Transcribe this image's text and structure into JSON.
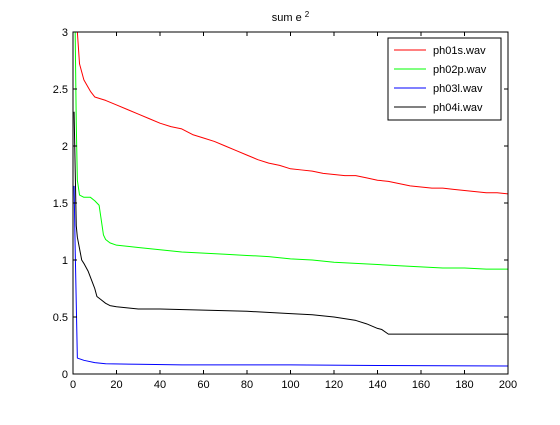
{
  "chart_data": {
    "type": "line",
    "title": "sum e",
    "title_superscript": "2",
    "xlabel": "",
    "ylabel": "",
    "xlim": [
      0,
      200
    ],
    "ylim": [
      0,
      3
    ],
    "xticks": [
      0,
      20,
      40,
      60,
      80,
      100,
      120,
      140,
      160,
      180,
      200
    ],
    "yticks": [
      0,
      0.5,
      1,
      1.5,
      2,
      2.5,
      3
    ],
    "ytick_labels": [
      "0",
      "0.5",
      "1",
      "1.5",
      "2",
      "2.5",
      "3"
    ],
    "grid": false,
    "legend_position": "top-right",
    "series": [
      {
        "name": "ph01s.wav",
        "color": "#ff0000",
        "points": [
          [
            2,
            3.0
          ],
          [
            3,
            2.72
          ],
          [
            5,
            2.58
          ],
          [
            8,
            2.48
          ],
          [
            10,
            2.43
          ],
          [
            15,
            2.4
          ],
          [
            20,
            2.36
          ],
          [
            25,
            2.32
          ],
          [
            30,
            2.28
          ],
          [
            35,
            2.24
          ],
          [
            40,
            2.2
          ],
          [
            45,
            2.17
          ],
          [
            50,
            2.15
          ],
          [
            55,
            2.1
          ],
          [
            60,
            2.07
          ],
          [
            65,
            2.04
          ],
          [
            70,
            2.0
          ],
          [
            75,
            1.96
          ],
          [
            80,
            1.92
          ],
          [
            85,
            1.88
          ],
          [
            90,
            1.85
          ],
          [
            95,
            1.83
          ],
          [
            100,
            1.8
          ],
          [
            105,
            1.79
          ],
          [
            110,
            1.78
          ],
          [
            115,
            1.76
          ],
          [
            120,
            1.75
          ],
          [
            125,
            1.74
          ],
          [
            130,
            1.74
          ],
          [
            135,
            1.72
          ],
          [
            140,
            1.7
          ],
          [
            145,
            1.69
          ],
          [
            150,
            1.67
          ],
          [
            155,
            1.65
          ],
          [
            160,
            1.64
          ],
          [
            165,
            1.63
          ],
          [
            170,
            1.63
          ],
          [
            175,
            1.62
          ],
          [
            180,
            1.61
          ],
          [
            185,
            1.6
          ],
          [
            190,
            1.59
          ],
          [
            195,
            1.59
          ],
          [
            200,
            1.58
          ]
        ]
      },
      {
        "name": "ph02p.wav",
        "color": "#00ff00",
        "points": [
          [
            1,
            3.0
          ],
          [
            1.5,
            2.2
          ],
          [
            2,
            1.7
          ],
          [
            3,
            1.57
          ],
          [
            5,
            1.55
          ],
          [
            8,
            1.55
          ],
          [
            10,
            1.52
          ],
          [
            12,
            1.48
          ],
          [
            13,
            1.35
          ],
          [
            14,
            1.22
          ],
          [
            15,
            1.18
          ],
          [
            17,
            1.15
          ],
          [
            20,
            1.13
          ],
          [
            30,
            1.11
          ],
          [
            40,
            1.09
          ],
          [
            50,
            1.07
          ],
          [
            60,
            1.06
          ],
          [
            70,
            1.05
          ],
          [
            80,
            1.04
          ],
          [
            90,
            1.03
          ],
          [
            100,
            1.01
          ],
          [
            110,
            1.0
          ],
          [
            120,
            0.98
          ],
          [
            130,
            0.97
          ],
          [
            140,
            0.96
          ],
          [
            150,
            0.95
          ],
          [
            160,
            0.94
          ],
          [
            170,
            0.93
          ],
          [
            180,
            0.93
          ],
          [
            190,
            0.92
          ],
          [
            200,
            0.92
          ]
        ]
      },
      {
        "name": "ph03l.wav",
        "color": "#0000ff",
        "points": [
          [
            0.5,
            1.65
          ],
          [
            1,
            1.1
          ],
          [
            2,
            0.14
          ],
          [
            5,
            0.12
          ],
          [
            10,
            0.1
          ],
          [
            15,
            0.09
          ],
          [
            30,
            0.085
          ],
          [
            50,
            0.08
          ],
          [
            100,
            0.08
          ],
          [
            140,
            0.075
          ],
          [
            200,
            0.07
          ]
        ]
      },
      {
        "name": "ph04i.wav",
        "color": "#000000",
        "points": [
          [
            0.5,
            2.3
          ],
          [
            1,
            1.8
          ],
          [
            1.5,
            1.3
          ],
          [
            2,
            1.2
          ],
          [
            3,
            1.1
          ],
          [
            4,
            1.0
          ],
          [
            5,
            0.97
          ],
          [
            7,
            0.9
          ],
          [
            9,
            0.8
          ],
          [
            10,
            0.75
          ],
          [
            11,
            0.68
          ],
          [
            13,
            0.65
          ],
          [
            15,
            0.62
          ],
          [
            17,
            0.6
          ],
          [
            20,
            0.59
          ],
          [
            25,
            0.58
          ],
          [
            30,
            0.57
          ],
          [
            40,
            0.57
          ],
          [
            60,
            0.56
          ],
          [
            80,
            0.55
          ],
          [
            100,
            0.53
          ],
          [
            110,
            0.52
          ],
          [
            120,
            0.5
          ],
          [
            130,
            0.47
          ],
          [
            135,
            0.44
          ],
          [
            140,
            0.4
          ],
          [
            142,
            0.39
          ],
          [
            145,
            0.35
          ],
          [
            150,
            0.35
          ],
          [
            200,
            0.35
          ]
        ]
      }
    ]
  }
}
